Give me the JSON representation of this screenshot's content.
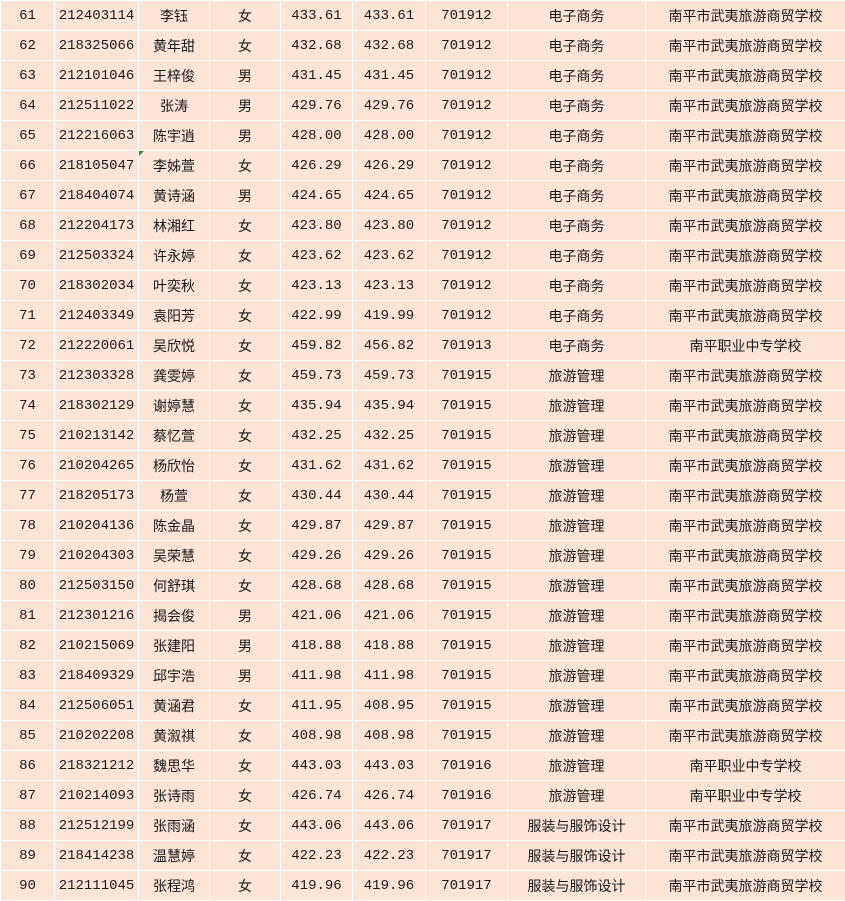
{
  "table": {
    "rows": [
      [
        "61",
        "212403114",
        "李钰",
        "女",
        "433.61",
        "433.61",
        "701912",
        "电子商务",
        "南平市武夷旅游商贸学校"
      ],
      [
        "62",
        "218325066",
        "黄年甜",
        "女",
        "432.68",
        "432.68",
        "701912",
        "电子商务",
        "南平市武夷旅游商贸学校"
      ],
      [
        "63",
        "212101046",
        "王梓俊",
        "男",
        "431.45",
        "431.45",
        "701912",
        "电子商务",
        "南平市武夷旅游商贸学校"
      ],
      [
        "64",
        "212511022",
        "张涛",
        "男",
        "429.76",
        "429.76",
        "701912",
        "电子商务",
        "南平市武夷旅游商贸学校"
      ],
      [
        "65",
        "212216063",
        "陈宇逍",
        "男",
        "428.00",
        "428.00",
        "701912",
        "电子商务",
        "南平市武夷旅游商贸学校"
      ],
      [
        "66",
        "218105047",
        "李姊萱",
        "女",
        "426.29",
        "426.29",
        "701912",
        "电子商务",
        "南平市武夷旅游商贸学校"
      ],
      [
        "67",
        "218404074",
        "黄诗涵",
        "男",
        "424.65",
        "424.65",
        "701912",
        "电子商务",
        "南平市武夷旅游商贸学校"
      ],
      [
        "68",
        "212204173",
        "林湘红",
        "女",
        "423.80",
        "423.80",
        "701912",
        "电子商务",
        "南平市武夷旅游商贸学校"
      ],
      [
        "69",
        "212503324",
        "许永婷",
        "女",
        "423.62",
        "423.62",
        "701912",
        "电子商务",
        "南平市武夷旅游商贸学校"
      ],
      [
        "70",
        "218302034",
        "叶奕秋",
        "女",
        "423.13",
        "423.13",
        "701912",
        "电子商务",
        "南平市武夷旅游商贸学校"
      ],
      [
        "71",
        "212403349",
        "袁阳芳",
        "女",
        "422.99",
        "419.99",
        "701912",
        "电子商务",
        "南平市武夷旅游商贸学校"
      ],
      [
        "72",
        "212220061",
        "吴欣悦",
        "女",
        "459.82",
        "456.82",
        "701913",
        "电子商务",
        "南平职业中专学校"
      ],
      [
        "73",
        "212303328",
        "龚雯婷",
        "女",
        "459.73",
        "459.73",
        "701915",
        "旅游管理",
        "南平市武夷旅游商贸学校"
      ],
      [
        "74",
        "218302129",
        "谢婷慧",
        "女",
        "435.94",
        "435.94",
        "701915",
        "旅游管理",
        "南平市武夷旅游商贸学校"
      ],
      [
        "75",
        "210213142",
        "蔡忆萱",
        "女",
        "432.25",
        "432.25",
        "701915",
        "旅游管理",
        "南平市武夷旅游商贸学校"
      ],
      [
        "76",
        "210204265",
        "杨欣怡",
        "女",
        "431.62",
        "431.62",
        "701915",
        "旅游管理",
        "南平市武夷旅游商贸学校"
      ],
      [
        "77",
        "218205173",
        "杨萱",
        "女",
        "430.44",
        "430.44",
        "701915",
        "旅游管理",
        "南平市武夷旅游商贸学校"
      ],
      [
        "78",
        "210204136",
        "陈金晶",
        "女",
        "429.87",
        "429.87",
        "701915",
        "旅游管理",
        "南平市武夷旅游商贸学校"
      ],
      [
        "79",
        "210204303",
        "吴荣慧",
        "女",
        "429.26",
        "429.26",
        "701915",
        "旅游管理",
        "南平市武夷旅游商贸学校"
      ],
      [
        "80",
        "212503150",
        "何舒琪",
        "女",
        "428.68",
        "428.68",
        "701915",
        "旅游管理",
        "南平市武夷旅游商贸学校"
      ],
      [
        "81",
        "212301216",
        "揭会俊",
        "男",
        "421.06",
        "421.06",
        "701915",
        "旅游管理",
        "南平市武夷旅游商贸学校"
      ],
      [
        "82",
        "210215069",
        "张建阳",
        "男",
        "418.88",
        "418.88",
        "701915",
        "旅游管理",
        "南平市武夷旅游商贸学校"
      ],
      [
        "83",
        "218409329",
        "邱宇浩",
        "男",
        "411.98",
        "411.98",
        "701915",
        "旅游管理",
        "南平市武夷旅游商贸学校"
      ],
      [
        "84",
        "212506051",
        "黄涵君",
        "女",
        "411.95",
        "408.95",
        "701915",
        "旅游管理",
        "南平市武夷旅游商贸学校"
      ],
      [
        "85",
        "210202208",
        "黄溆祺",
        "女",
        "408.98",
        "408.98",
        "701915",
        "旅游管理",
        "南平市武夷旅游商贸学校"
      ],
      [
        "86",
        "218321212",
        "魏思华",
        "女",
        "443.03",
        "443.03",
        "701916",
        "旅游管理",
        "南平职业中专学校"
      ],
      [
        "87",
        "210214093",
        "张诗雨",
        "女",
        "426.74",
        "426.74",
        "701916",
        "旅游管理",
        "南平职业中专学校"
      ],
      [
        "88",
        "212512199",
        "张雨涵",
        "女",
        "443.06",
        "443.06",
        "701917",
        "服装与服饰设计",
        "南平市武夷旅游商贸学校"
      ],
      [
        "89",
        "218414238",
        "温慧婷",
        "女",
        "422.23",
        "422.23",
        "701917",
        "服装与服饰设计",
        "南平市武夷旅游商贸学校"
      ],
      [
        "90",
        "212111045",
        "张程鸿",
        "女",
        "419.96",
        "419.96",
        "701917",
        "服装与服饰设计",
        "南平市武夷旅游商贸学校"
      ]
    ]
  },
  "colors": {
    "cell_background": "#fce4d6",
    "grid": "#ffffff",
    "comment_flag": "#2e8b2e"
  }
}
